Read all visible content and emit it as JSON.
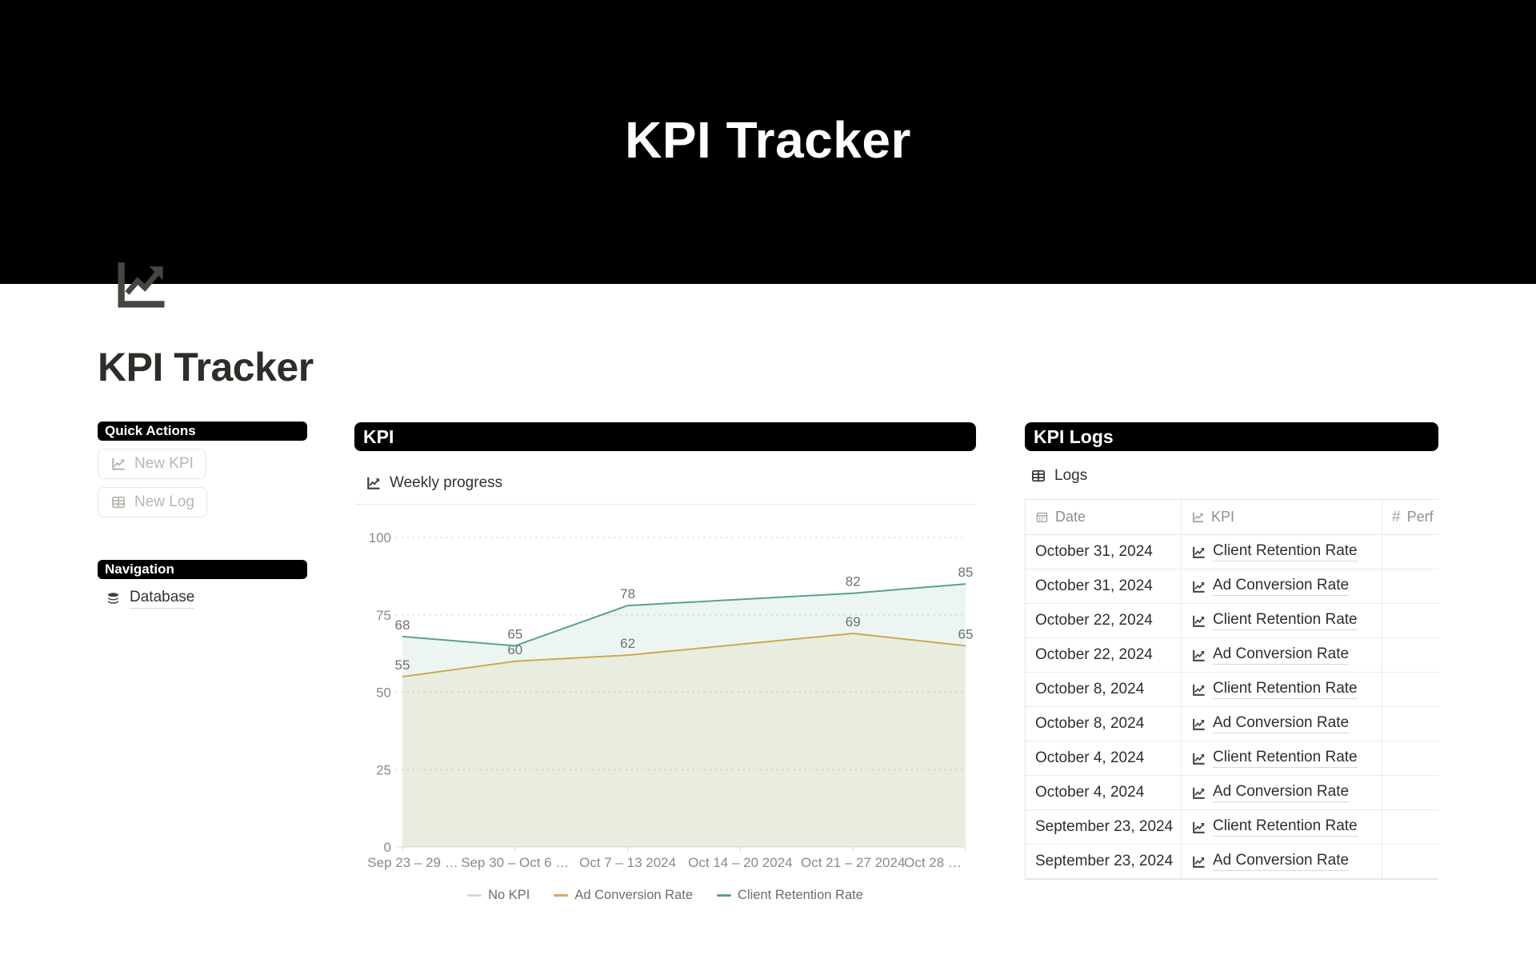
{
  "banner": {
    "title": "KPI Tracker"
  },
  "page": {
    "icon": "chart-increasing-icon",
    "title": "KPI Tracker"
  },
  "sidebar": {
    "quick_actions": {
      "header": "Quick Actions",
      "buttons": [
        {
          "label": "New KPI",
          "icon": "trend-icon"
        },
        {
          "label": "New Log",
          "icon": "table-icon"
        }
      ]
    },
    "navigation": {
      "header": "Navigation",
      "items": [
        {
          "label": "Database",
          "icon": "database-icon"
        }
      ]
    }
  },
  "kpi_section": {
    "header": "KPI",
    "widget_title": "Weekly progress",
    "widget_icon": "trend-icon",
    "chart_data": {
      "type": "line",
      "title": "Weekly progress",
      "categories": [
        "Sep 23 – 29 …",
        "Sep 30 – Oct 6 …",
        "Oct 7 – 13 2024",
        "Oct 14 – 20 2024",
        "Oct 21 – 27 2024",
        "Oct 28 …"
      ],
      "series": [
        {
          "name": "No KPI",
          "color": "#d9d8d4",
          "values": [
            null,
            null,
            null,
            null,
            null,
            null
          ]
        },
        {
          "name": "Ad Conversion Rate",
          "color": "#d9ab47",
          "values": [
            55,
            60,
            62,
            null,
            69,
            65
          ]
        },
        {
          "name": "Client Retention Rate",
          "color": "#57a489",
          "values": [
            68,
            65,
            78,
            null,
            82,
            85
          ]
        }
      ],
      "ylim": [
        0,
        100
      ],
      "yticks": [
        0,
        25,
        50,
        75,
        100
      ],
      "grid": "horizontal-dotted",
      "legend_position": "bottom"
    }
  },
  "logs_section": {
    "header": "KPI Logs",
    "table_title": "Logs",
    "table_icon": "table-icon",
    "columns": [
      {
        "label": "Date",
        "icon": "calendar-icon"
      },
      {
        "label": "KPI",
        "icon": "trend-icon"
      },
      {
        "label": "Perf",
        "icon": "number-icon",
        "truncated": true
      }
    ],
    "rows": [
      {
        "date": "October 31, 2024",
        "kpi": "Client Retention Rate"
      },
      {
        "date": "October 31, 2024",
        "kpi": "Ad Conversion Rate"
      },
      {
        "date": "October 22, 2024",
        "kpi": "Client Retention Rate"
      },
      {
        "date": "October 22, 2024",
        "kpi": "Ad Conversion Rate"
      },
      {
        "date": "October 8, 2024",
        "kpi": "Client Retention Rate"
      },
      {
        "date": "October 8, 2024",
        "kpi": "Ad Conversion Rate"
      },
      {
        "date": "October 4, 2024",
        "kpi": "Client Retention Rate"
      },
      {
        "date": "October 4, 2024",
        "kpi": "Ad Conversion Rate"
      },
      {
        "date": "September 23, 2024",
        "kpi": "Client Retention Rate"
      },
      {
        "date": "September 23, 2024",
        "kpi": "Ad Conversion Rate"
      }
    ]
  }
}
